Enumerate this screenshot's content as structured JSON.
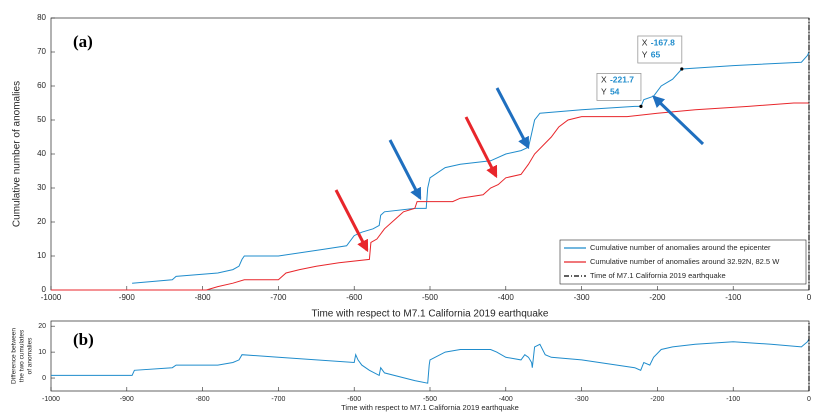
{
  "chart_data": [
    {
      "type": "line",
      "panel_label": "(a)",
      "xlabel": "Time with respect to M7.1 California 2019 earthquake",
      "ylabel": "Cumulative number of anomalies",
      "xlim": [
        -1000,
        0
      ],
      "xticks": [
        -1000,
        -900,
        -800,
        -700,
        -600,
        -500,
        -400,
        -300,
        -200,
        -100,
        0
      ],
      "ylim": [
        0,
        80
      ],
      "yticks": [
        0,
        10,
        20,
        30,
        40,
        50,
        60,
        70,
        80
      ],
      "series": [
        {
          "name": "Cumulative number of anomalies around the epicenter",
          "color": "#1f8ccc",
          "x": [
            -893,
            -840,
            -835,
            -780,
            -760,
            -752,
            -748,
            -745,
            -700,
            -640,
            -610,
            -600,
            -590,
            -575,
            -567,
            -565,
            -560,
            -520,
            -505,
            -503,
            -500,
            -480,
            -460,
            -420,
            -400,
            -380,
            -370,
            -366,
            -362,
            -355,
            -300,
            -230,
            -221.7,
            -218,
            -205,
            -195,
            -180,
            -167.8,
            -100,
            -10,
            -2,
            0
          ],
          "values": [
            2,
            3,
            4,
            5,
            6,
            7,
            9,
            10,
            10,
            12,
            13,
            16,
            17,
            18,
            19,
            22,
            23,
            24,
            24,
            30,
            33,
            36,
            37,
            38,
            40,
            41,
            42,
            46,
            50,
            52,
            53,
            54,
            54,
            56,
            57,
            60,
            62,
            65,
            66,
            67,
            69,
            70
          ]
        },
        {
          "name": "Cumulative number of anomalies around 32.92N, 82.5 W",
          "color": "#e8262b",
          "x": [
            -1000,
            -795,
            -780,
            -760,
            -745,
            -700,
            -690,
            -672,
            -650,
            -620,
            -580,
            -578,
            -570,
            -560,
            -545,
            -535,
            -520,
            -517,
            -470,
            -460,
            -430,
            -420,
            -410,
            -400,
            -380,
            -370,
            -362,
            -340,
            -330,
            -318,
            -300,
            -240,
            -200,
            -150,
            -80,
            -20,
            0
          ],
          "values": [
            0,
            0,
            1,
            2,
            3,
            3,
            5,
            6,
            7,
            8,
            9,
            14,
            15,
            18,
            21,
            23,
            24,
            26,
            26,
            27,
            28,
            30,
            31,
            33,
            34,
            37,
            40,
            45,
            48,
            50,
            51,
            51,
            52,
            53,
            54,
            55,
            55
          ]
        },
        {
          "name": "Time of M7.1 California 2019 earthquake",
          "color": "#000000",
          "dash": "dash-dot",
          "x": [
            0,
            0
          ],
          "values": [
            0,
            80
          ]
        }
      ],
      "datatips": [
        {
          "x_label": "X",
          "x": -221.7,
          "y_label": "Y",
          "y": 54
        },
        {
          "x_label": "X",
          "x": -167.8,
          "y_label": "Y",
          "y": 65
        }
      ]
    },
    {
      "type": "line",
      "panel_label": "(b)",
      "xlabel": "Time with respect to M7.1 California 2019 earthquake",
      "ylabel": [
        "Difference between",
        "the two cumulates",
        "of anomalies"
      ],
      "xlim": [
        -1000,
        0
      ],
      "xticks": [
        -1000,
        -900,
        -800,
        -700,
        -600,
        -500,
        -400,
        -300,
        -200,
        -100,
        0
      ],
      "ylim": [
        -5,
        22
      ],
      "yticks": [
        0,
        10,
        20
      ],
      "series": [
        {
          "color": "#1f8ccc",
          "x": [
            -1000,
            -893,
            -890,
            -840,
            -835,
            -780,
            -760,
            -752,
            -748,
            -700,
            -600,
            -598,
            -595,
            -590,
            -580,
            -567,
            -565,
            -560,
            -520,
            -503,
            -501,
            -500,
            -480,
            -460,
            -420,
            -412,
            -400,
            -380,
            -375,
            -370,
            -366,
            -365,
            -362,
            -355,
            -348,
            -340,
            -300,
            -230,
            -222,
            -218,
            -210,
            -205,
            -195,
            -180,
            -150,
            -100,
            -50,
            -10,
            -2,
            0
          ],
          "values": [
            1,
            1,
            3,
            4,
            5,
            5,
            6,
            7,
            9,
            8,
            6,
            9,
            7,
            5,
            3,
            1,
            4,
            2,
            -1,
            -2,
            5,
            7,
            10,
            11,
            11,
            10,
            8,
            7,
            9,
            8,
            6,
            4,
            12,
            13,
            9,
            8,
            7,
            4,
            3,
            6,
            5,
            8,
            11,
            12,
            13,
            14,
            13,
            12,
            14,
            15
          ]
        },
        {
          "color": "#000000",
          "dash": "dash-dot",
          "x": [
            0,
            0
          ],
          "values": [
            -5,
            22
          ]
        }
      ]
    }
  ]
}
